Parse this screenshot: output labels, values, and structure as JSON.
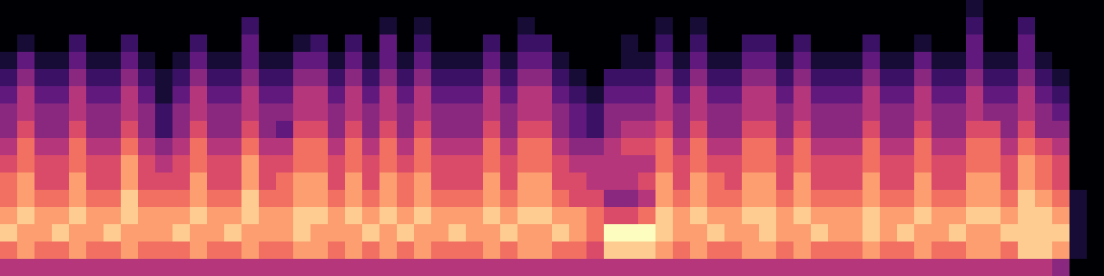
{
  "chart_data": {
    "type": "heatmap",
    "color": "magma",
    "tick_labels": false,
    "grid": false,
    "zlim": [
      0,
      10
    ],
    "z": [
      [
        5,
        5,
        5,
        5,
        5,
        5,
        5,
        5,
        5,
        5,
        5,
        5,
        5,
        5,
        5,
        5,
        5,
        5,
        5,
        5,
        5,
        5,
        5,
        5,
        5,
        5,
        5,
        5,
        5,
        5,
        5,
        5,
        5,
        5,
        5,
        5,
        5,
        5,
        5,
        5,
        5,
        5,
        5,
        5,
        5,
        5,
        5,
        5,
        5,
        5,
        5,
        5,
        5,
        5,
        5,
        5,
        5,
        5,
        5,
        5,
        5,
        4,
        0,
        0
      ],
      [
        7,
        8,
        7,
        7,
        8,
        7,
        7,
        8,
        7,
        7,
        7,
        8,
        7,
        7,
        8,
        7,
        7,
        8,
        8,
        7,
        8,
        7,
        8,
        7,
        8,
        7,
        7,
        7,
        8,
        7,
        8,
        8,
        7,
        7,
        6,
        9,
        9,
        9,
        8,
        7,
        8,
        7,
        7,
        8,
        8,
        7,
        8,
        7,
        7,
        7,
        8,
        7,
        7,
        8,
        7,
        7,
        8,
        8,
        7,
        9,
        9,
        8,
        1,
        0
      ],
      [
        9,
        8,
        8,
        9,
        8,
        8,
        9,
        8,
        8,
        8,
        9,
        8,
        8,
        9,
        8,
        8,
        8,
        9,
        8,
        8,
        8,
        9,
        8,
        9,
        8,
        8,
        9,
        8,
        8,
        9,
        8,
        8,
        9,
        8,
        7,
        10,
        10,
        10,
        9,
        8,
        8,
        9,
        8,
        8,
        9,
        8,
        8,
        9,
        8,
        8,
        9,
        8,
        9,
        8,
        8,
        9,
        8,
        8,
        9,
        9,
        9,
        9,
        1,
        0
      ],
      [
        8,
        9,
        8,
        8,
        9,
        8,
        8,
        9,
        8,
        8,
        8,
        9,
        8,
        8,
        9,
        8,
        8,
        9,
        9,
        8,
        9,
        8,
        9,
        8,
        9,
        8,
        8,
        8,
        9,
        8,
        9,
        9,
        8,
        8,
        7,
        6,
        6,
        7,
        9,
        8,
        9,
        8,
        8,
        9,
        9,
        8,
        9,
        8,
        8,
        8,
        9,
        8,
        8,
        9,
        8,
        8,
        9,
        9,
        8,
        9,
        9,
        8,
        1,
        0
      ],
      [
        7,
        8,
        7,
        7,
        8,
        7,
        7,
        9,
        7,
        7,
        7,
        8,
        7,
        7,
        9,
        7,
        7,
        8,
        8,
        7,
        8,
        7,
        8,
        7,
        8,
        7,
        7,
        7,
        8,
        7,
        8,
        8,
        7,
        6,
        6,
        4,
        4,
        5,
        8,
        7,
        8,
        7,
        7,
        8,
        8,
        7,
        8,
        7,
        7,
        7,
        8,
        7,
        7,
        8,
        7,
        7,
        8,
        8,
        7,
        9,
        8,
        7,
        1,
        0
      ],
      [
        7,
        8,
        6,
        6,
        8,
        6,
        6,
        8,
        6,
        6,
        6,
        8,
        6,
        6,
        8,
        6,
        7,
        8,
        8,
        6,
        8,
        6,
        8,
        7,
        8,
        6,
        6,
        6,
        8,
        6,
        8,
        8,
        6,
        6,
        5,
        5,
        5,
        6,
        8,
        6,
        8,
        7,
        6,
        8,
        8,
        6,
        8,
        6,
        6,
        6,
        8,
        6,
        6,
        8,
        6,
        6,
        8,
        8,
        6,
        8,
        7,
        6,
        0,
        0
      ],
      [
        6,
        7,
        6,
        6,
        7,
        6,
        6,
        8,
        6,
        5,
        6,
        7,
        6,
        6,
        8,
        6,
        6,
        7,
        7,
        6,
        7,
        6,
        7,
        6,
        7,
        6,
        6,
        6,
        7,
        6,
        7,
        7,
        6,
        5,
        5,
        5,
        5,
        5,
        7,
        6,
        7,
        6,
        6,
        7,
        7,
        6,
        7,
        6,
        6,
        6,
        7,
        6,
        6,
        7,
        6,
        6,
        7,
        7,
        6,
        8,
        7,
        6,
        0,
        0
      ],
      [
        5,
        7,
        5,
        5,
        7,
        5,
        5,
        7,
        5,
        4,
        5,
        7,
        5,
        5,
        7,
        5,
        5,
        7,
        7,
        5,
        7,
        5,
        7,
        5,
        7,
        5,
        5,
        5,
        7,
        5,
        7,
        7,
        5,
        4,
        4,
        5,
        6,
        6,
        7,
        5,
        7,
        5,
        5,
        7,
        7,
        5,
        7,
        5,
        5,
        5,
        7,
        5,
        5,
        7,
        5,
        5,
        7,
        7,
        5,
        7,
        6,
        5,
        0,
        0
      ],
      [
        4,
        6,
        4,
        4,
        6,
        4,
        4,
        6,
        4,
        2,
        4,
        6,
        4,
        4,
        6,
        4,
        3,
        6,
        6,
        4,
        6,
        4,
        6,
        4,
        6,
        4,
        4,
        4,
        6,
        4,
        6,
        6,
        4,
        3,
        2,
        4,
        5,
        5,
        6,
        4,
        6,
        4,
        4,
        6,
        6,
        4,
        6,
        4,
        4,
        4,
        6,
        4,
        4,
        6,
        4,
        4,
        6,
        6,
        4,
        6,
        4,
        4,
        0,
        0
      ],
      [
        4,
        5,
        4,
        4,
        5,
        4,
        4,
        5,
        4,
        2,
        4,
        5,
        4,
        4,
        5,
        4,
        4,
        5,
        5,
        4,
        5,
        4,
        5,
        4,
        5,
        4,
        4,
        4,
        5,
        4,
        5,
        5,
        4,
        3,
        2,
        4,
        4,
        4,
        5,
        4,
        5,
        4,
        4,
        5,
        5,
        4,
        5,
        4,
        4,
        4,
        5,
        4,
        4,
        5,
        4,
        4,
        5,
        4,
        4,
        5,
        4,
        3,
        0,
        0
      ],
      [
        3,
        5,
        3,
        3,
        5,
        3,
        3,
        5,
        3,
        1,
        3,
        5,
        3,
        3,
        5,
        3,
        3,
        5,
        5,
        3,
        5,
        3,
        5,
        3,
        5,
        3,
        3,
        3,
        5,
        3,
        5,
        5,
        3,
        2,
        1,
        3,
        3,
        3,
        5,
        3,
        5,
        3,
        3,
        5,
        5,
        3,
        5,
        3,
        3,
        3,
        5,
        3,
        3,
        5,
        3,
        3,
        5,
        3,
        3,
        5,
        3,
        2,
        0,
        0
      ],
      [
        2,
        4,
        2,
        2,
        4,
        2,
        2,
        4,
        2,
        1,
        2,
        4,
        2,
        2,
        4,
        2,
        2,
        4,
        4,
        2,
        4,
        2,
        4,
        2,
        4,
        2,
        2,
        2,
        4,
        2,
        4,
        4,
        2,
        1,
        0,
        2,
        2,
        2,
        4,
        2,
        4,
        2,
        2,
        4,
        4,
        2,
        4,
        2,
        2,
        2,
        4,
        2,
        2,
        4,
        2,
        2,
        4,
        2,
        2,
        4,
        2,
        1,
        0,
        0
      ],
      [
        1,
        3,
        1,
        1,
        3,
        1,
        1,
        3,
        1,
        0,
        1,
        3,
        1,
        1,
        3,
        1,
        1,
        3,
        3,
        1,
        3,
        1,
        3,
        1,
        3,
        1,
        1,
        1,
        3,
        1,
        3,
        3,
        1,
        0,
        0,
        0,
        1,
        1,
        3,
        1,
        3,
        1,
        1,
        3,
        3,
        1,
        3,
        1,
        1,
        1,
        3,
        1,
        1,
        3,
        1,
        1,
        3,
        1,
        1,
        3,
        1,
        0,
        0,
        0
      ],
      [
        0,
        1,
        0,
        0,
        2,
        0,
        0,
        2,
        0,
        0,
        0,
        2,
        0,
        0,
        3,
        0,
        0,
        1,
        2,
        0,
        2,
        0,
        3,
        0,
        2,
        0,
        0,
        0,
        2,
        0,
        2,
        2,
        0,
        0,
        0,
        0,
        1,
        0,
        2,
        0,
        2,
        0,
        0,
        2,
        2,
        0,
        2,
        0,
        0,
        0,
        2,
        0,
        0,
        1,
        0,
        0,
        3,
        0,
        0,
        3,
        0,
        0,
        0,
        0
      ],
      [
        0,
        0,
        0,
        0,
        0,
        0,
        0,
        0,
        0,
        0,
        0,
        0,
        0,
        0,
        2,
        0,
        0,
        0,
        0,
        0,
        0,
        0,
        1,
        0,
        1,
        0,
        0,
        0,
        0,
        0,
        1,
        0,
        0,
        0,
        0,
        0,
        0,
        0,
        1,
        0,
        1,
        0,
        0,
        0,
        0,
        0,
        0,
        0,
        0,
        0,
        0,
        0,
        0,
        0,
        0,
        0,
        2,
        0,
        0,
        2,
        0,
        0,
        0,
        0
      ],
      [
        0,
        0,
        0,
        0,
        0,
        0,
        0,
        0,
        0,
        0,
        0,
        0,
        0,
        0,
        0,
        0,
        0,
        0,
        0,
        0,
        0,
        0,
        0,
        0,
        0,
        0,
        0,
        0,
        0,
        0,
        0,
        0,
        0,
        0,
        0,
        0,
        0,
        0,
        0,
        0,
        0,
        0,
        0,
        0,
        0,
        0,
        0,
        0,
        0,
        0,
        0,
        0,
        0,
        0,
        0,
        0,
        1,
        0,
        0,
        0,
        0,
        0,
        0,
        0
      ]
    ]
  }
}
